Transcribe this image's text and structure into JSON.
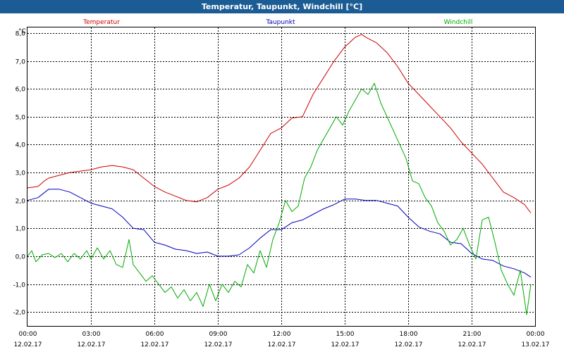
{
  "window": {
    "title": "Temperatur, Taupunkt, Windchill [°C]"
  },
  "chart_data": {
    "type": "line",
    "title": "Temperatur, Taupunkt, Windchill [°C]",
    "unit_label": "°C",
    "ylim": [
      -2.5,
      8.2
    ],
    "yticks": [
      8.0,
      7.0,
      6.0,
      5.0,
      4.0,
      3.0,
      2.0,
      1.0,
      0.0,
      -1.0,
      -2.0
    ],
    "ytick_labels": [
      "8,0",
      "7,0",
      "6,0",
      "5,0",
      "4,0",
      "3,0",
      "2,0",
      "1,0",
      "0,0",
      "-1,0",
      "-2,0"
    ],
    "xlim": [
      0,
      24
    ],
    "xticks": [
      0,
      3,
      6,
      9,
      12,
      15,
      18,
      21,
      24
    ],
    "xtick_time_labels": [
      "00:00",
      "03:00",
      "06:00",
      "09:00",
      "12:00",
      "15:00",
      "18:00",
      "21:00",
      "00:00"
    ],
    "xtick_date_labels": [
      "12.02.17",
      "12.02.17",
      "12.02.17",
      "12.02.17",
      "12.02.17",
      "12.02.17",
      "12.02.17",
      "12.02.17",
      "13.02.17"
    ],
    "grid": true,
    "legend_position": "top",
    "series": [
      {
        "name": "Temperatur",
        "color": "#cc0000",
        "x": [
          0,
          0.5,
          0.8,
          1,
          1.5,
          2,
          2.5,
          3,
          3.5,
          4,
          4.5,
          5,
          5.5,
          6,
          6.5,
          7,
          7.5,
          8,
          8.5,
          9,
          9.5,
          10,
          10.5,
          11,
          11.5,
          12,
          12.5,
          13,
          13.5,
          14,
          14.5,
          15,
          15.5,
          15.8,
          16,
          16.5,
          17,
          17.5,
          18,
          18.5,
          19,
          19.5,
          20,
          20.5,
          21,
          21.5,
          22,
          22.5,
          23,
          23.5,
          23.8
        ],
        "values": [
          2.45,
          2.5,
          2.7,
          2.8,
          2.9,
          3.0,
          3.05,
          3.1,
          3.2,
          3.25,
          3.2,
          3.1,
          2.8,
          2.5,
          2.3,
          2.15,
          2.0,
          1.95,
          2.1,
          2.4,
          2.55,
          2.8,
          3.2,
          3.8,
          4.4,
          4.6,
          4.95,
          5.0,
          5.8,
          6.4,
          7.0,
          7.5,
          7.85,
          7.95,
          7.85,
          7.65,
          7.3,
          6.8,
          6.2,
          5.8,
          5.4,
          5.0,
          4.6,
          4.1,
          3.7,
          3.3,
          2.8,
          2.3,
          2.1,
          1.85,
          1.55
        ]
      },
      {
        "name": "Taupunkt",
        "color": "#0000bb",
        "x": [
          0,
          0.5,
          1,
          1.5,
          2,
          2.5,
          3,
          3.5,
          4,
          4.5,
          5,
          5.5,
          6,
          6.5,
          7,
          7.5,
          8,
          8.5,
          9,
          9.5,
          10,
          10.5,
          11,
          11.5,
          12,
          12.5,
          13,
          13.5,
          14,
          14.5,
          15,
          15.5,
          16,
          16.5,
          17,
          17.5,
          18,
          18.5,
          19,
          19.5,
          20,
          20.5,
          21,
          21.5,
          22,
          22.5,
          23,
          23.5,
          23.8
        ],
        "values": [
          2.0,
          2.1,
          2.4,
          2.4,
          2.3,
          2.1,
          1.9,
          1.8,
          1.7,
          1.4,
          1.0,
          0.95,
          0.5,
          0.4,
          0.25,
          0.2,
          0.1,
          0.15,
          0.0,
          0.0,
          0.05,
          0.3,
          0.65,
          0.95,
          0.95,
          1.2,
          1.3,
          1.5,
          1.7,
          1.85,
          2.05,
          2.05,
          2.0,
          2.0,
          1.9,
          1.8,
          1.4,
          1.05,
          0.9,
          0.8,
          0.5,
          0.45,
          0.1,
          -0.1,
          -0.15,
          -0.35,
          -0.45,
          -0.6,
          -0.75
        ]
      },
      {
        "name": "Windchill",
        "color": "#00aa00",
        "x": [
          0,
          0.2,
          0.4,
          0.7,
          1,
          1.3,
          1.6,
          1.9,
          2.2,
          2.5,
          2.8,
          3,
          3.3,
          3.6,
          3.9,
          4.2,
          4.5,
          4.8,
          5,
          5.3,
          5.6,
          5.9,
          6.2,
          6.5,
          6.8,
          7.1,
          7.4,
          7.7,
          8,
          8.3,
          8.6,
          8.9,
          9.2,
          9.5,
          9.8,
          10.1,
          10.4,
          10.7,
          11,
          11.3,
          11.6,
          11.9,
          12.2,
          12.5,
          12.8,
          13.1,
          13.4,
          13.7,
          14,
          14.3,
          14.6,
          14.9,
          15.2,
          15.5,
          15.8,
          16.1,
          16.4,
          16.7,
          17,
          17.3,
          17.6,
          17.9,
          18.2,
          18.5,
          18.8,
          19.1,
          19.4,
          19.7,
          20,
          20.3,
          20.6,
          20.9,
          21.2,
          21.5,
          21.8,
          22.1,
          22.4,
          22.7,
          23,
          23.3,
          23.6,
          23.8
        ],
        "values": [
          0.0,
          0.2,
          -0.2,
          0.05,
          0.1,
          -0.05,
          0.1,
          -0.2,
          0.1,
          -0.1,
          0.2,
          -0.1,
          0.3,
          -0.1,
          0.2,
          -0.3,
          -0.4,
          0.6,
          -0.3,
          -0.6,
          -0.9,
          -0.7,
          -1.0,
          -1.3,
          -1.1,
          -1.5,
          -1.2,
          -1.6,
          -1.3,
          -1.8,
          -1.0,
          -1.6,
          -1.0,
          -1.3,
          -0.9,
          -1.1,
          -0.3,
          -0.6,
          0.2,
          -0.4,
          0.6,
          1.2,
          2.0,
          1.6,
          1.8,
          2.8,
          3.2,
          3.8,
          4.2,
          4.6,
          5.0,
          4.7,
          5.2,
          5.6,
          6.0,
          5.8,
          6.2,
          5.5,
          5.0,
          4.5,
          4.0,
          3.5,
          2.7,
          2.6,
          2.1,
          1.8,
          1.2,
          0.9,
          0.4,
          0.6,
          1.0,
          0.4,
          -0.1,
          1.3,
          1.4,
          0.5,
          -0.5,
          -1.0,
          -1.4,
          -0.5,
          -2.1,
          -1.0
        ]
      }
    ]
  }
}
